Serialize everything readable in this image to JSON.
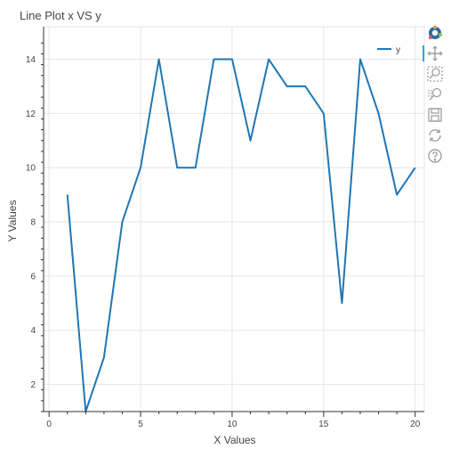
{
  "chart_data": {
    "type": "line",
    "title": "Line Plot x VS y",
    "xlabel": "X Values",
    "ylabel": "Y Values",
    "xlim": [
      -0.3,
      20.5
    ],
    "ylim": [
      1,
      15.2
    ],
    "xticks": [
      0,
      5,
      10,
      15,
      20
    ],
    "yticks": [
      2,
      4,
      6,
      8,
      10,
      12,
      14
    ],
    "grid": true,
    "legend_position": "top-right",
    "series": [
      {
        "name": "y",
        "color": "#1f77b4",
        "x": [
          1,
          2,
          3,
          4,
          5,
          6,
          7,
          8,
          9,
          10,
          11,
          12,
          13,
          14,
          15,
          16,
          17,
          18,
          19,
          20
        ],
        "y": [
          9,
          1,
          3,
          8,
          10,
          14,
          10,
          10,
          14,
          14,
          11,
          14,
          13,
          13,
          12,
          5,
          14,
          12,
          9,
          10
        ]
      }
    ]
  },
  "toolbar": {
    "tools": [
      {
        "id": "bokeh-logo-icon",
        "label": "Bokeh",
        "active": false
      },
      {
        "id": "pan-icon",
        "label": "Pan",
        "active": true
      },
      {
        "id": "box-zoom-icon",
        "label": "Box Zoom",
        "active": false
      },
      {
        "id": "wheel-zoom-icon",
        "label": "Wheel Zoom",
        "active": false
      },
      {
        "id": "save-icon",
        "label": "Save",
        "active": false
      },
      {
        "id": "reset-icon",
        "label": "Reset",
        "active": false
      },
      {
        "id": "help-icon",
        "label": "Help",
        "active": false
      }
    ]
  }
}
